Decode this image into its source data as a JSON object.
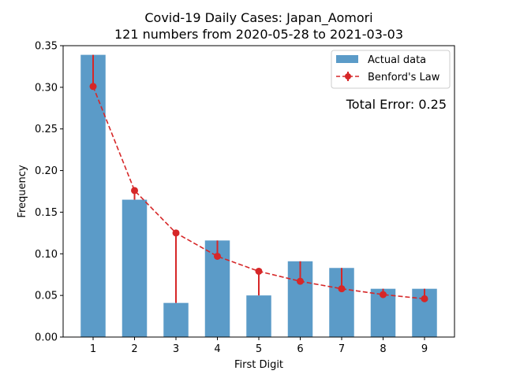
{
  "chart_data": {
    "type": "bar",
    "title": "Covid-19 Daily Cases: Japan_Aomori",
    "subtitle": "121 numbers from 2020-05-28 to 2021-03-03",
    "xlabel": "First Digit",
    "ylabel": "Frequency",
    "categories": [
      "1",
      "2",
      "3",
      "4",
      "5",
      "6",
      "7",
      "8",
      "9"
    ],
    "ylim": [
      0,
      0.35
    ],
    "yticks": [
      "0.00",
      "0.05",
      "0.10",
      "0.15",
      "0.20",
      "0.25",
      "0.30",
      "0.35"
    ],
    "grid": false,
    "legend_position": "top-right",
    "series": [
      {
        "name": "Actual data",
        "type": "bar",
        "color": "#5b9bc8",
        "values": [
          0.339,
          0.165,
          0.041,
          0.116,
          0.05,
          0.091,
          0.083,
          0.058,
          0.058
        ]
      },
      {
        "name": "Benford's Law",
        "type": "line",
        "style": "dashed",
        "marker": "circle",
        "color": "#d62728",
        "values": [
          0.301,
          0.176,
          0.125,
          0.097,
          0.079,
          0.067,
          0.058,
          0.051,
          0.046
        ]
      }
    ],
    "annotation": {
      "text": "Total Error: 0.25",
      "color": "#d62728"
    }
  }
}
